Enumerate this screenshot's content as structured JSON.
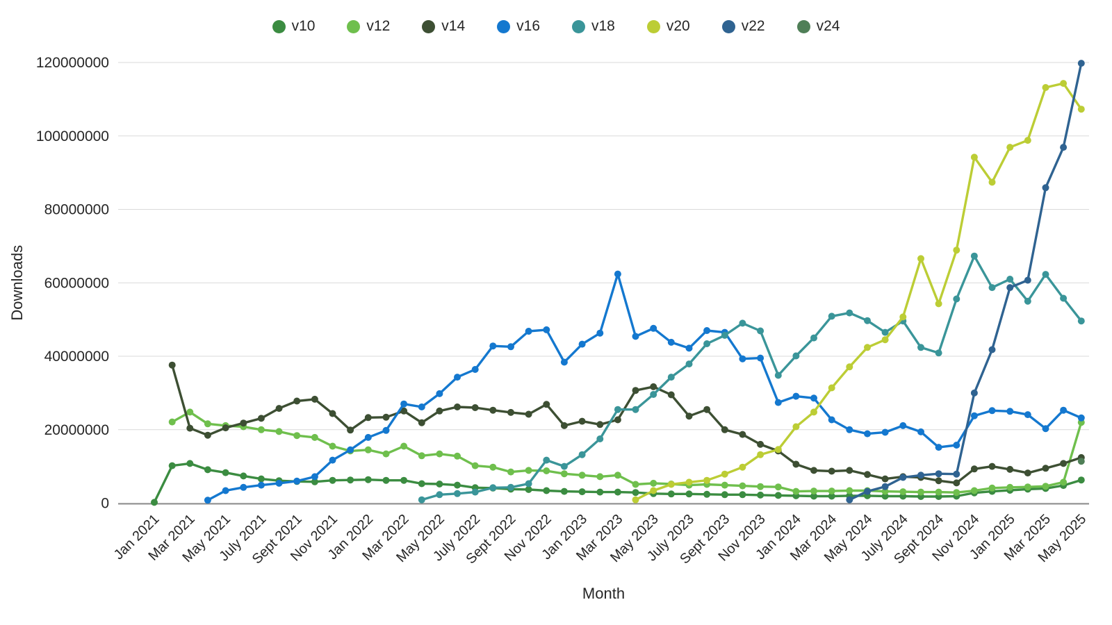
{
  "chart_data": {
    "type": "line",
    "title": "",
    "xlabel": "Month",
    "ylabel": "Downloads",
    "unit": "millions_of_downloads",
    "ylim": [
      0,
      120000000
    ],
    "grid": "horizontal",
    "legend_position": "top",
    "y_ticks": [
      {
        "value": 0,
        "label": "0"
      },
      {
        "value": 20,
        "label": "20000000"
      },
      {
        "value": 40,
        "label": "40000000"
      },
      {
        "value": 60,
        "label": "60000000"
      },
      {
        "value": 80,
        "label": "80000000"
      },
      {
        "value": 100,
        "label": "100000000"
      },
      {
        "value": 120,
        "label": "120000000"
      }
    ],
    "x_tick_every": 2,
    "months": [
      "Jan 2021",
      "Feb 2021",
      "Mar 2021",
      "Apr 2021",
      "May 2021",
      "June 2021",
      "July 2021",
      "Aug 2021",
      "Sept 2021",
      "Oct 2021",
      "Nov 2021",
      "Dec 2021",
      "Jan 2022",
      "Feb 2022",
      "Mar 2022",
      "Apr 2022",
      "May 2022",
      "June 2022",
      "July 2022",
      "Aug 2022",
      "Sept 2022",
      "Oct 2022",
      "Nov 2022",
      "Dec 2022",
      "Jan 2023",
      "Feb 2023",
      "Mar 2023",
      "Apr 2023",
      "May 2023",
      "June 2023",
      "July 2023",
      "Aug 2023",
      "Sept 2023",
      "Oct 2023",
      "Nov 2023",
      "Dec 2023",
      "Jan 2024",
      "Feb 2024",
      "Mar 2024",
      "Apr 2024",
      "May 2024",
      "June 2024",
      "July 2024",
      "Aug 2024",
      "Sept 2024",
      "Oct 2024",
      "Nov 2024",
      "Dec 2024",
      "Jan 2025",
      "Feb 2025",
      "Mar 2025",
      "Apr 2025",
      "May 2025"
    ],
    "series": [
      {
        "name": "v10",
        "color": "#3b8c41",
        "values": [
          0.2,
          10.2,
          10.8,
          9.1,
          8.3,
          7.4,
          6.6,
          6.1,
          5.9,
          5.8,
          6.2,
          6.3,
          6.4,
          6.2,
          6.2,
          5.3,
          5.2,
          4.9,
          4.2,
          4.1,
          3.8,
          3.7,
          3.4,
          3.2,
          3.1,
          3.0,
          3.0,
          2.9,
          2.6,
          2.5,
          2.5,
          2.4,
          2.3,
          2.3,
          2.2,
          2.1,
          2.0,
          1.9,
          1.9,
          2.0,
          2.0,
          1.9,
          1.9,
          1.8,
          1.8,
          1.9,
          2.8,
          3.2,
          3.5,
          3.8,
          4.0,
          4.8,
          6.3
        ]
      },
      {
        "name": "v12",
        "color": "#6fbf4d",
        "values": [
          null,
          22.1,
          24.8,
          21.6,
          21.1,
          20.8,
          20.0,
          19.5,
          18.4,
          17.9,
          15.5,
          14.2,
          14.5,
          13.4,
          15.5,
          12.9,
          13.4,
          12.8,
          10.2,
          9.8,
          8.5,
          8.9,
          8.8,
          8.0,
          7.6,
          7.2,
          7.6,
          5.1,
          5.4,
          5.2,
          4.9,
          5.1,
          4.9,
          4.7,
          4.5,
          4.4,
          3.2,
          3.3,
          3.3,
          3.4,
          3.4,
          3.2,
          3.1,
          3.0,
          3.0,
          2.9,
          3.4,
          4.1,
          4.3,
          4.4,
          4.6,
          5.7,
          22.0
        ]
      },
      {
        "name": "v14",
        "color": "#3d4f33",
        "values": [
          null,
          37.6,
          20.4,
          18.5,
          20.5,
          21.8,
          23.1,
          25.8,
          27.8,
          28.3,
          24.4,
          19.9,
          23.3,
          23.4,
          25.1,
          21.9,
          25.1,
          26.2,
          26.0,
          25.3,
          24.7,
          24.2,
          26.9,
          21.1,
          22.3,
          21.4,
          22.7,
          30.7,
          31.7,
          29.5,
          23.7,
          25.5,
          20.0,
          18.7,
          16.0,
          14.2,
          10.6,
          8.9,
          8.7,
          8.9,
          7.8,
          6.6,
          7.2,
          7.0,
          6.1,
          5.5,
          9.3,
          10.0,
          9.2,
          8.2,
          9.5,
          10.8,
          12.4
        ]
      },
      {
        "name": "v16",
        "color": "#1478cf",
        "values": [
          null,
          null,
          null,
          0.8,
          3.4,
          4.3,
          4.9,
          5.4,
          6.0,
          7.2,
          11.7,
          14.5,
          17.9,
          19.8,
          27.0,
          26.2,
          29.8,
          34.3,
          36.4,
          42.8,
          42.6,
          46.8,
          47.2,
          38.4,
          43.3,
          46.3,
          62.4,
          45.4,
          47.6,
          43.8,
          42.2,
          47.0,
          46.5,
          39.3,
          39.5,
          27.4,
          29.1,
          28.6,
          22.7,
          20.0,
          18.9,
          19.3,
          21.1,
          19.4,
          15.2,
          15.8,
          23.8,
          25.2,
          25.0,
          24.1,
          20.3,
          25.3,
          23.2
        ]
      },
      {
        "name": "v18",
        "color": "#3a9599",
        "values": [
          null,
          null,
          null,
          null,
          null,
          null,
          null,
          null,
          null,
          null,
          null,
          null,
          null,
          null,
          null,
          0.9,
          2.3,
          2.6,
          3.0,
          4.2,
          4.3,
          5.3,
          11.7,
          10.0,
          13.2,
          17.5,
          25.5,
          25.5,
          29.6,
          34.3,
          37.9,
          43.4,
          45.7,
          49.0,
          46.9,
          34.8,
          40.1,
          45.0,
          50.9,
          51.8,
          49.7,
          46.5,
          49.6,
          42.4,
          40.9,
          55.6,
          67.3,
          58.7,
          61.0,
          55.0,
          62.3,
          55.8,
          49.6
        ]
      },
      {
        "name": "v20",
        "color": "#bccd35",
        "values": [
          null,
          null,
          null,
          null,
          null,
          null,
          null,
          null,
          null,
          null,
          null,
          null,
          null,
          null,
          null,
          null,
          null,
          null,
          null,
          null,
          null,
          null,
          null,
          null,
          null,
          null,
          null,
          0.9,
          3.4,
          5.1,
          5.7,
          6.2,
          7.9,
          9.8,
          13.2,
          14.6,
          20.8,
          24.8,
          31.4,
          37.1,
          42.4,
          44.5,
          50.7,
          66.6,
          54.3,
          68.9,
          94.2,
          87.4,
          96.9,
          98.8,
          113.2,
          114.3,
          107.3
        ]
      },
      {
        "name": "v22",
        "color": "#2f6391",
        "values": [
          null,
          null,
          null,
          null,
          null,
          null,
          null,
          null,
          null,
          null,
          null,
          null,
          null,
          null,
          null,
          null,
          null,
          null,
          null,
          null,
          null,
          null,
          null,
          null,
          null,
          null,
          null,
          null,
          null,
          null,
          null,
          null,
          null,
          null,
          null,
          null,
          null,
          null,
          null,
          0.9,
          3.2,
          4.5,
          7.0,
          7.6,
          8.0,
          7.9,
          30.0,
          41.8,
          58.7,
          60.7,
          85.9,
          96.9,
          119.8
        ]
      },
      {
        "name": "v24",
        "color": "#4f7f57",
        "values": [
          null,
          null,
          null,
          null,
          null,
          null,
          null,
          null,
          null,
          null,
          null,
          null,
          null,
          null,
          null,
          null,
          null,
          null,
          null,
          null,
          null,
          null,
          null,
          null,
          null,
          null,
          null,
          null,
          null,
          null,
          null,
          null,
          null,
          null,
          null,
          null,
          null,
          null,
          null,
          null,
          null,
          null,
          null,
          null,
          null,
          null,
          null,
          null,
          null,
          null,
          null,
          null,
          11.4
        ]
      }
    ],
    "style": {
      "text_color": "#262626",
      "grid_color": "#d9d9d9",
      "axis_color": "#8f8f8f",
      "background": "#ffffff"
    }
  }
}
